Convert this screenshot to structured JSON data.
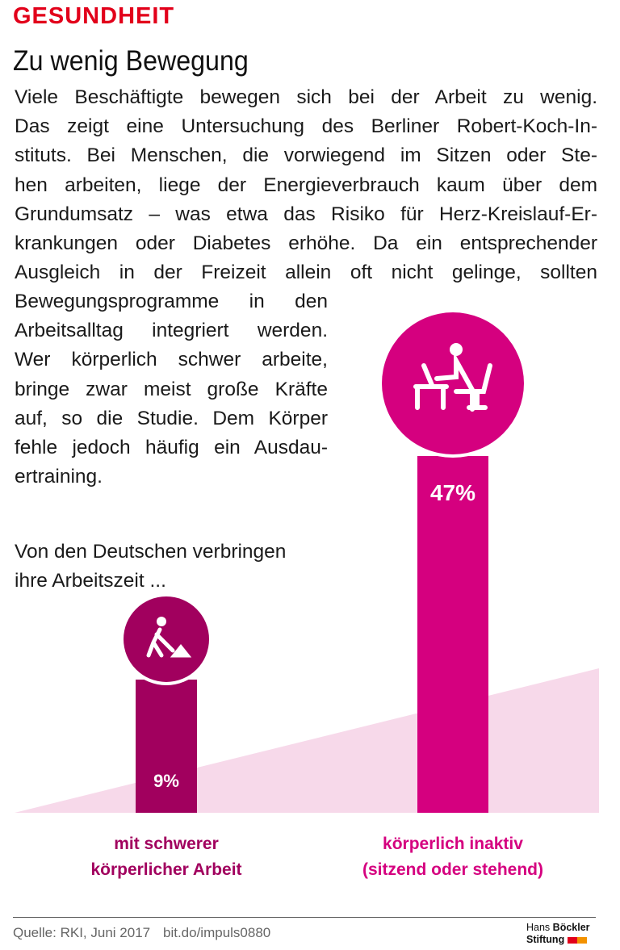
{
  "kicker": "GESUNDHEIT",
  "title": "Zu wenig Bewegung",
  "body_lines_full": [
    "Viele Beschäftigte bewegen sich bei der Arbeit zu wenig.",
    "Das zeigt eine Untersuchung des Berliner Robert-Koch-In-",
    "stituts. Bei Menschen, die vorwiegend im Sitzen oder Ste-",
    "hen arbeiten, liege der Energieverbrauch kaum über dem",
    "Grundumsatz – was etwa das Risiko für Herz-Kreislauf-Er-",
    "krankungen oder Diabetes erhöhe. Da ein entsprechender",
    "Ausgleich in der Freizeit allein oft nicht gelinge, sollten"
  ],
  "body_lines_narrow": [
    "Bewegungsprogramme in den",
    "Arbeitsalltag integriert werden.",
    "Wer körperlich schwer arbeite,",
    "bringe zwar meist große Kräfte",
    "auf, so die Studie. Dem Körper",
    "fehle jedoch häufig ein Ausdau-",
    "ertraining."
  ],
  "intro_lines": [
    "Von den Deutschen verbringen",
    "ihre Arbeitszeit ..."
  ],
  "chart_data": {
    "type": "bar",
    "categories": [
      "mit schwerer körperlicher Arbeit",
      "körperlich inaktiv (sitzend oder stehend)"
    ],
    "category_lines": [
      [
        "mit schwerer",
        "körperlicher Arbeit"
      ],
      [
        "körperlich inaktiv",
        "(sitzend oder stehend)"
      ]
    ],
    "values": [
      9,
      47
    ],
    "labels": [
      "9%",
      "47%"
    ],
    "icons": [
      "shoveling-worker-icon",
      "desk-worker-icon"
    ],
    "colors": [
      "#a1005e",
      "#d5007f"
    ],
    "background_color": "#f7d9ea"
  },
  "footer": {
    "source": "Quelle: RKI, Juni 2017",
    "url": "bit.do/impuls0880",
    "logo_line1_a": "Hans",
    "logo_line1_b": "Böckler",
    "logo_line2": "Stiftung",
    "logo_colors": [
      "#e2001a",
      "#f39200"
    ]
  }
}
